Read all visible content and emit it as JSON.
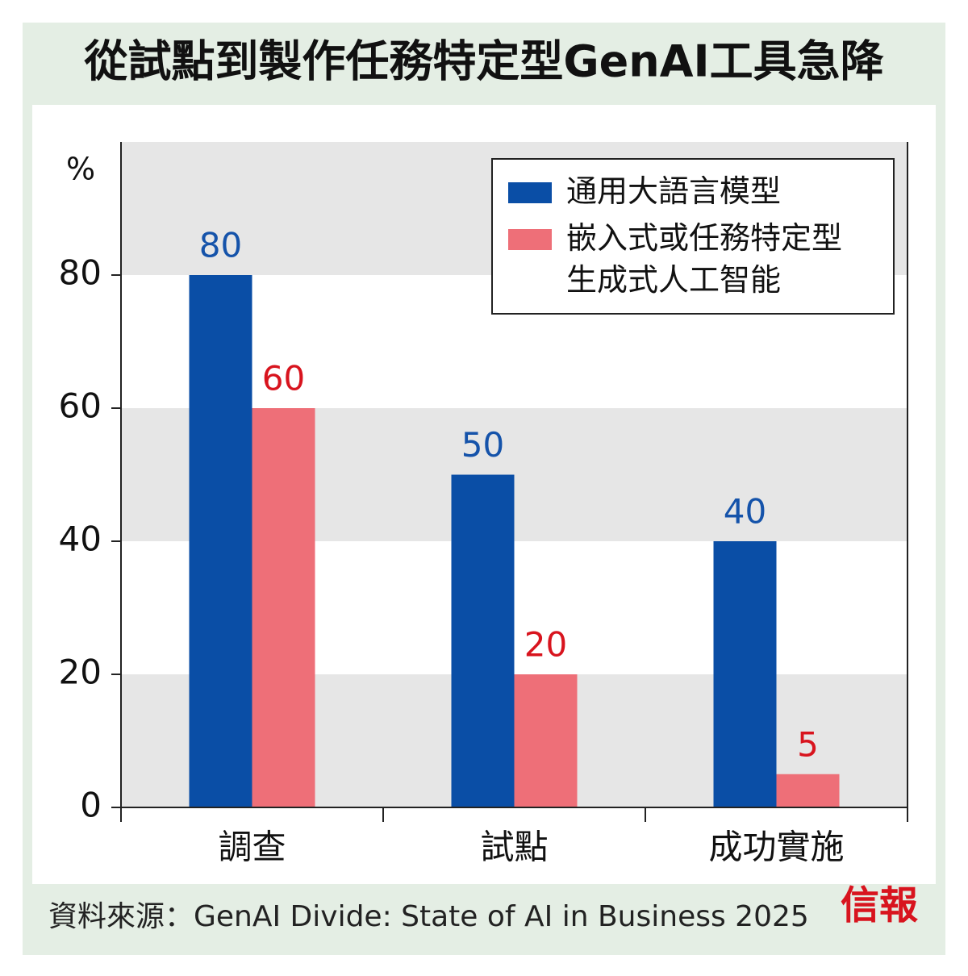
{
  "chart_data": {
    "type": "bar",
    "title": "從試點到製作任務特定型GenAI工具急降",
    "y_label": "%",
    "categories": [
      "調查",
      "試點",
      "成功實施"
    ],
    "series": [
      {
        "name": "通用大語言模型",
        "color": "#0a4ea6",
        "label_color": "#1553aa",
        "values": [
          80,
          50,
          40
        ]
      },
      {
        "name": "嵌入式或任務特定型生成式人工智能",
        "color": "#ee6f78",
        "label_color": "#d8141e",
        "values": [
          60,
          20,
          5
        ]
      }
    ],
    "ylim": [
      0,
      100
    ],
    "yticks": [
      0,
      20,
      40,
      60,
      80
    ],
    "source": "資料來源：GenAI Divide: State of AI in Business 2025",
    "brand": "信報"
  }
}
